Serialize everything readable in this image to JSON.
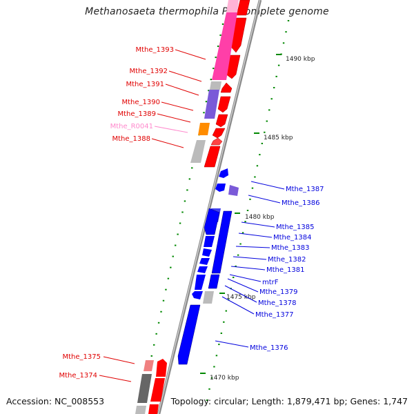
{
  "title": "Methanosaeta thermophila PT, complete genome",
  "accession": "Accession: NC_008553",
  "summary": "Topology: circular; Length: 1,879,471 bp; Genes: 1,747",
  "ruler": [
    {
      "label": "1490 kbp"
    },
    {
      "label": "1485 kbp"
    },
    {
      "label": "1480 kbp"
    },
    {
      "label": "1475 kbp"
    },
    {
      "label": "1470 kbp"
    }
  ],
  "colors": {
    "plus_label": "#e00000",
    "minus_label": "#0000dd",
    "rna_label": "#ff88cc",
    "backbone": "#888888",
    "forward_gene": "#ff0000",
    "reverse_gene": "#0000ff",
    "cog_pink": "#ff3fa8",
    "cog_violet": "#7a5ad8",
    "cog_orange": "#ff8c00",
    "cog_gray": "#bbbbbb",
    "cog_darkgray": "#666666",
    "cog_salmon": "#f08080",
    "ticks": "#008800"
  },
  "genes_left": [
    {
      "label": "Mthe_1393"
    },
    {
      "label": "Mthe_1392"
    },
    {
      "label": "Mthe_1391"
    },
    {
      "label": "Mthe_1390"
    },
    {
      "label": "Mthe_1389"
    },
    {
      "label": "Mthe_R0041"
    },
    {
      "label": "Mthe_1388"
    },
    {
      "label": "Mthe_1375"
    },
    {
      "label": "Mthe_1374"
    }
  ],
  "genes_right": [
    {
      "label": "Mthe_1387"
    },
    {
      "label": "Mthe_1386"
    },
    {
      "label": "Mthe_1385"
    },
    {
      "label": "Mthe_1384"
    },
    {
      "label": "Mthe_1383"
    },
    {
      "label": "Mthe_1382"
    },
    {
      "label": "Mthe_1381"
    },
    {
      "label": "mtrF"
    },
    {
      "label": "Mthe_1379"
    },
    {
      "label": "Mthe_1378"
    },
    {
      "label": "Mthe_1377"
    },
    {
      "label": "Mthe_1376"
    }
  ]
}
